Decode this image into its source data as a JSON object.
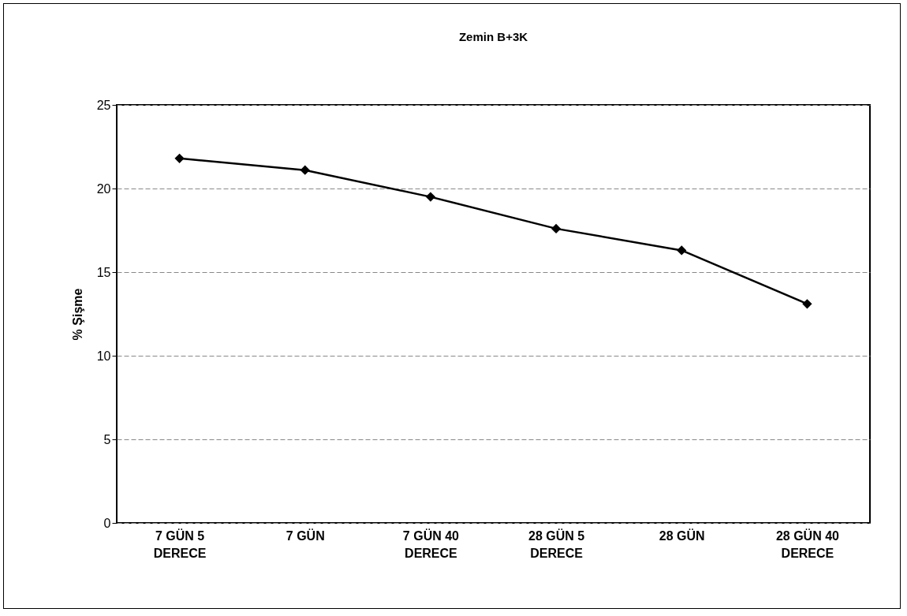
{
  "chart_data": {
    "type": "line",
    "title": "Zemin B+3K",
    "ylabel": "% Şişme",
    "categories": [
      "7 GÜN 5 DERECE",
      "7 GÜN",
      "7 GÜN 40 DERECE",
      "28 GÜN 5 DERECE",
      "28 GÜN",
      "28 GÜN 40 DERECE"
    ],
    "series": [
      {
        "color": "#000000",
        "values": [
          21.8,
          21.1,
          19.5,
          17.6,
          16.3,
          13.1
        ]
      }
    ],
    "ylim": [
      0,
      25
    ],
    "yticks": [
      0,
      5,
      10,
      15,
      20,
      25
    ],
    "grid": "y",
    "marker": "diamond",
    "line_style": "solid"
  }
}
